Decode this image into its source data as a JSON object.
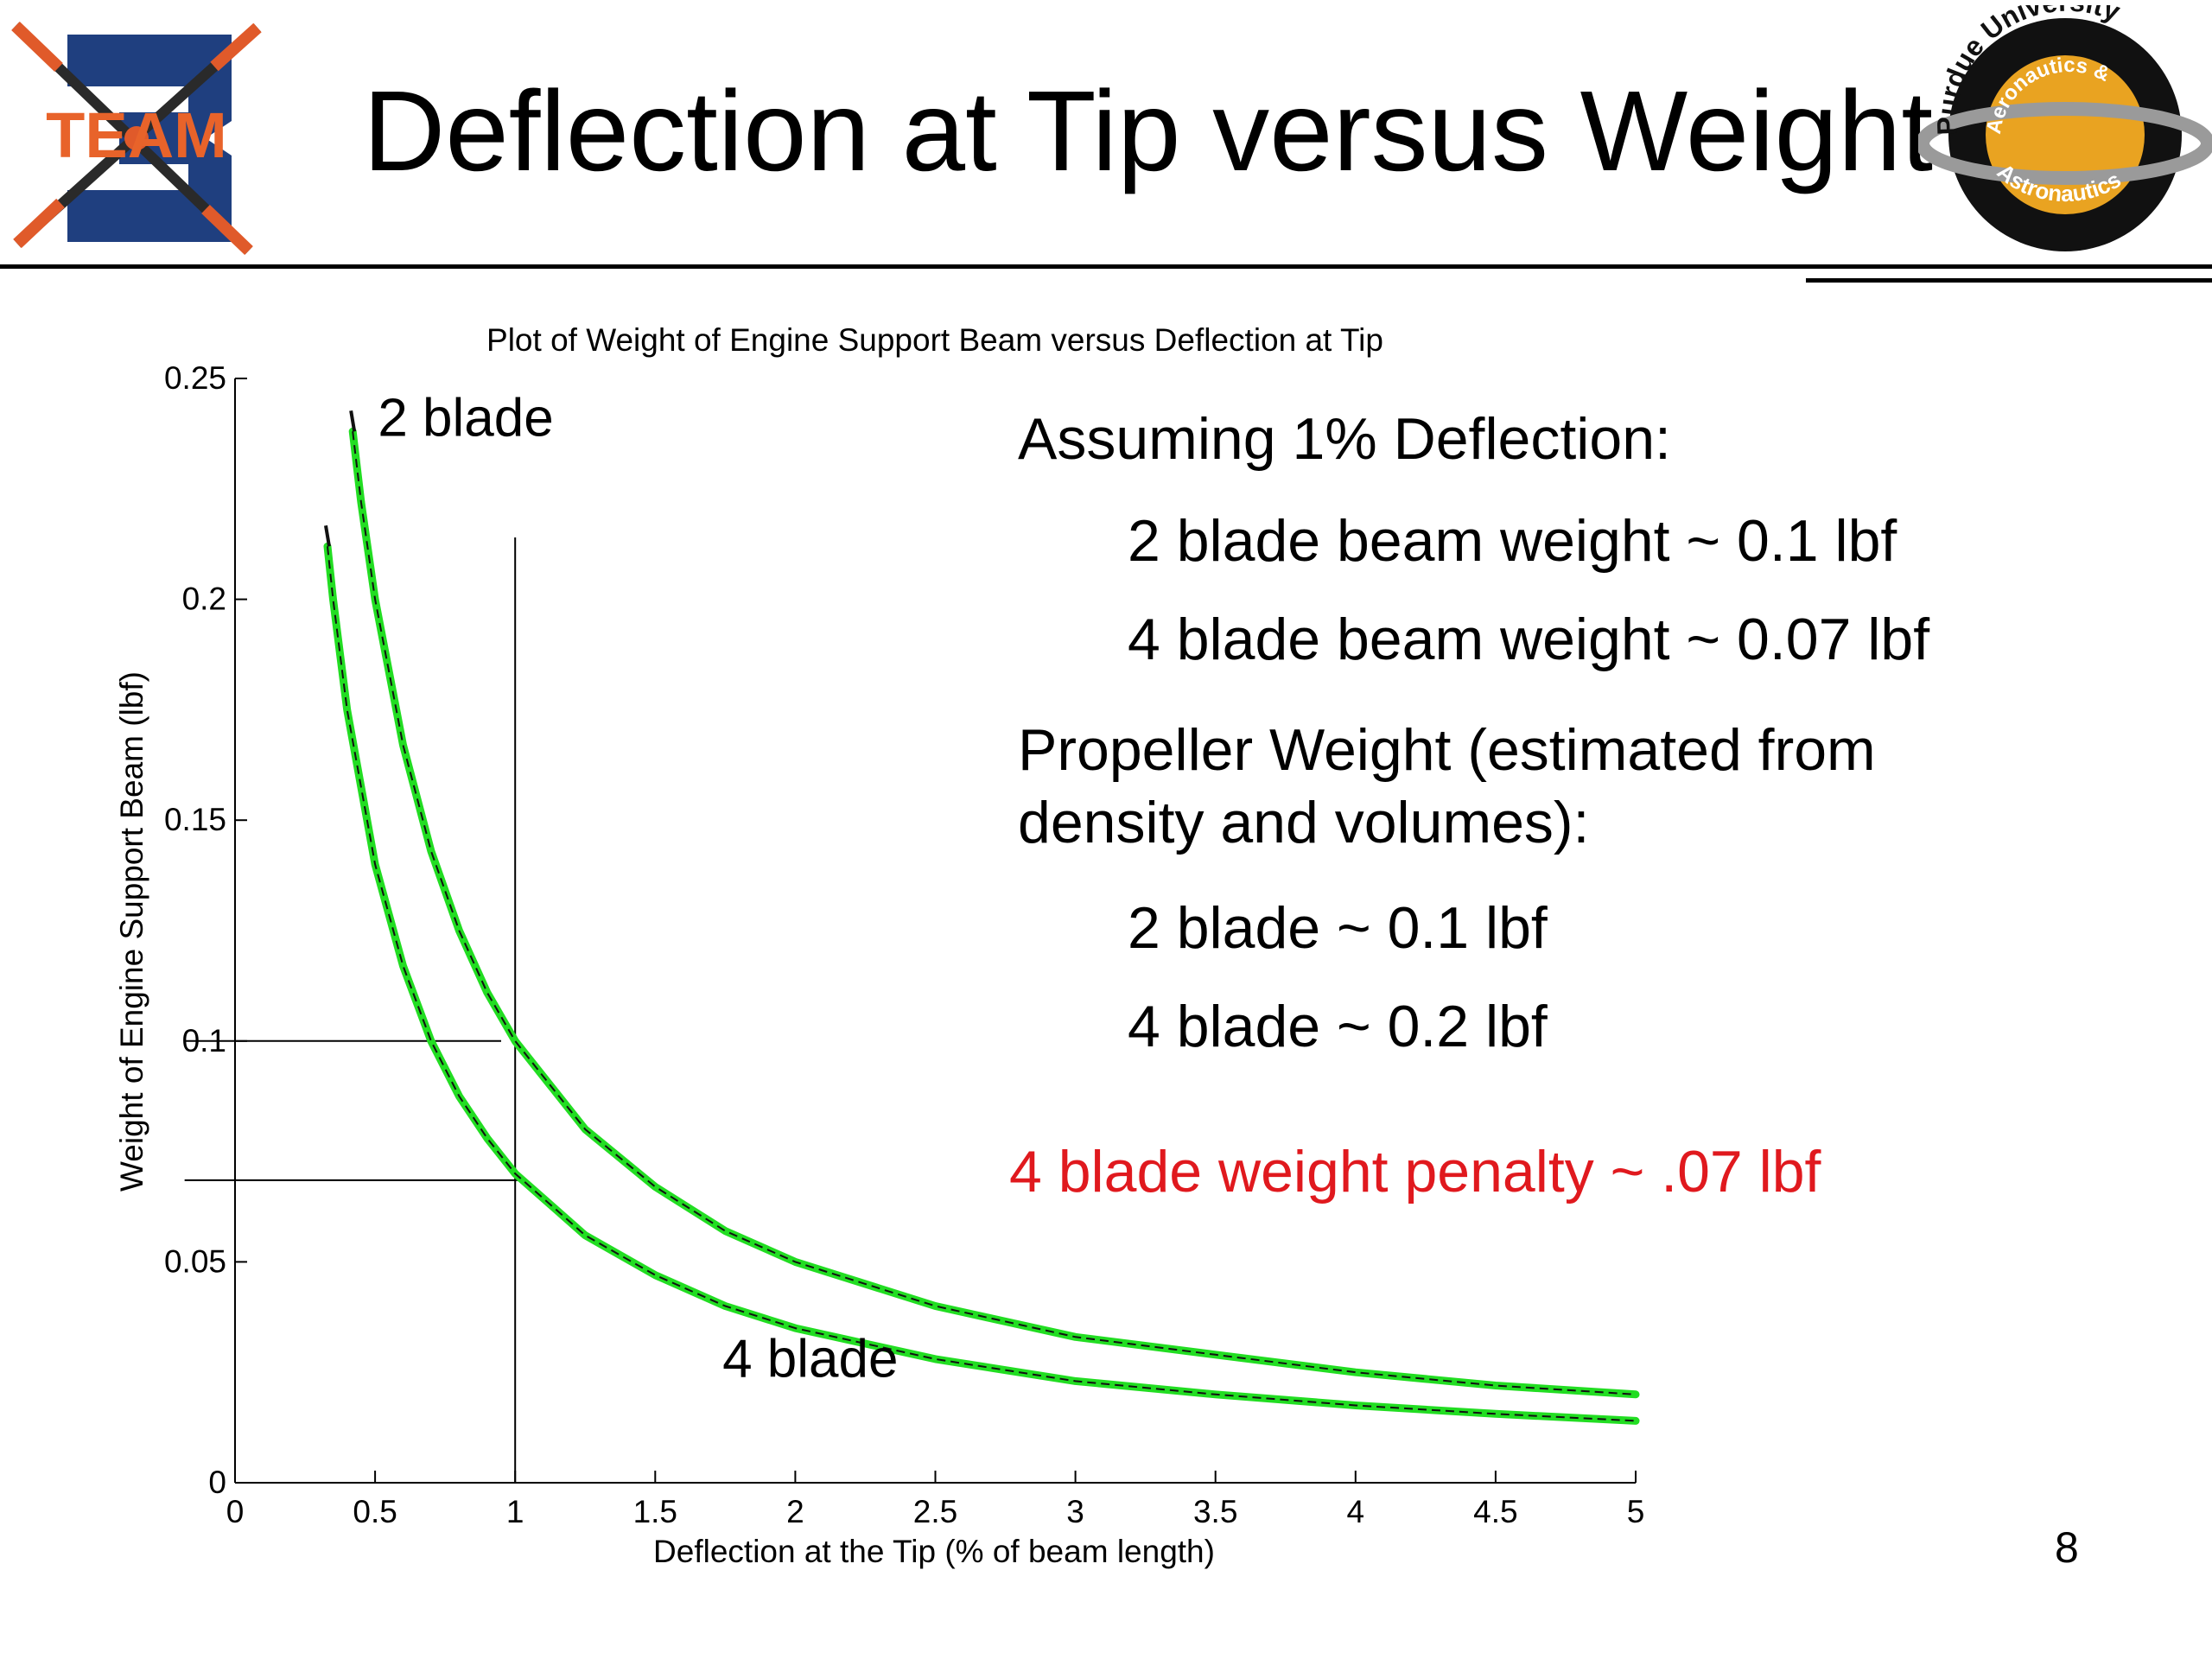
{
  "slide": {
    "title": "Deflection at Tip versus Weight",
    "page_number": "8",
    "logos": {
      "left": {
        "icon": "team-8-propeller-logo",
        "text": "TEAM"
      },
      "right": {
        "icon": "purdue-aeronautics-astronautics-seal",
        "text_top": "Purdue University",
        "text_mid": "Aeronautics &",
        "text_bottom": "Astronautics"
      }
    }
  },
  "notes": {
    "heading1": "Assuming 1% Deflection:",
    "line1": "2 blade beam weight ~ 0.1 lbf",
    "line2": "4 blade beam weight ~ 0.07 lbf",
    "heading2_line1": "Propeller Weight (estimated from",
    "heading2_line2": "density and volumes):",
    "line3": "2 blade ~ 0.1 lbf",
    "line4": "4 blade ~ 0.2 lbf",
    "penalty": "4 blade weight penalty ~ .07 lbf",
    "penalty_color": "#e0191e"
  },
  "chart_data": {
    "type": "line",
    "title": "Plot of Weight of Engine Support Beam versus Deflection at Tip",
    "xlabel": "Deflection at the Tip (% of beam length)",
    "ylabel": "Weight of Engine Support Beam (lbf)",
    "xlim": [
      0,
      5
    ],
    "ylim": [
      0,
      0.25
    ],
    "xticks": [
      "0",
      "0.5",
      "1",
      "1.5",
      "2",
      "2.5",
      "3",
      "3.5",
      "4",
      "4.5",
      "5"
    ],
    "yticks": [
      "0",
      "0.05",
      "0.1",
      "0.15",
      "0.2",
      "0.25"
    ],
    "grid": false,
    "series_color": "#22dd22",
    "series": [
      {
        "name": "2 blade",
        "x": [
          0.42,
          0.45,
          0.5,
          0.6,
          0.7,
          0.8,
          0.9,
          1.0,
          1.25,
          1.5,
          1.75,
          2.0,
          2.5,
          3.0,
          3.5,
          4.0,
          4.5,
          5.0
        ],
        "y": [
          0.238,
          0.222,
          0.2,
          0.167,
          0.143,
          0.125,
          0.111,
          0.1,
          0.08,
          0.067,
          0.057,
          0.05,
          0.04,
          0.033,
          0.029,
          0.025,
          0.022,
          0.02
        ]
      },
      {
        "name": "4 blade",
        "x": [
          0.33,
          0.35,
          0.4,
          0.5,
          0.6,
          0.7,
          0.8,
          0.9,
          1.0,
          1.25,
          1.5,
          1.75,
          2.0,
          2.5,
          3.0,
          3.5,
          4.0,
          4.5,
          5.0
        ],
        "y": [
          0.212,
          0.2,
          0.175,
          0.14,
          0.117,
          0.1,
          0.0875,
          0.078,
          0.07,
          0.056,
          0.047,
          0.04,
          0.035,
          0.028,
          0.023,
          0.02,
          0.0175,
          0.0156,
          0.014
        ]
      }
    ],
    "reference_lines": [
      {
        "kind": "vertical",
        "x": 1.0,
        "y_from": 0.0,
        "y_to": 0.214
      },
      {
        "kind": "horizontal",
        "y": 0.1,
        "x_from": -0.18,
        "x_to": 0.95
      },
      {
        "kind": "horizontal",
        "y": 0.0685,
        "x_from": -0.18,
        "x_to": 1.02
      }
    ],
    "annotations": [
      {
        "text": "2 blade",
        "x": 0.51,
        "y": 0.237
      },
      {
        "text": "4 blade",
        "x": 1.74,
        "y": 0.024
      }
    ]
  }
}
